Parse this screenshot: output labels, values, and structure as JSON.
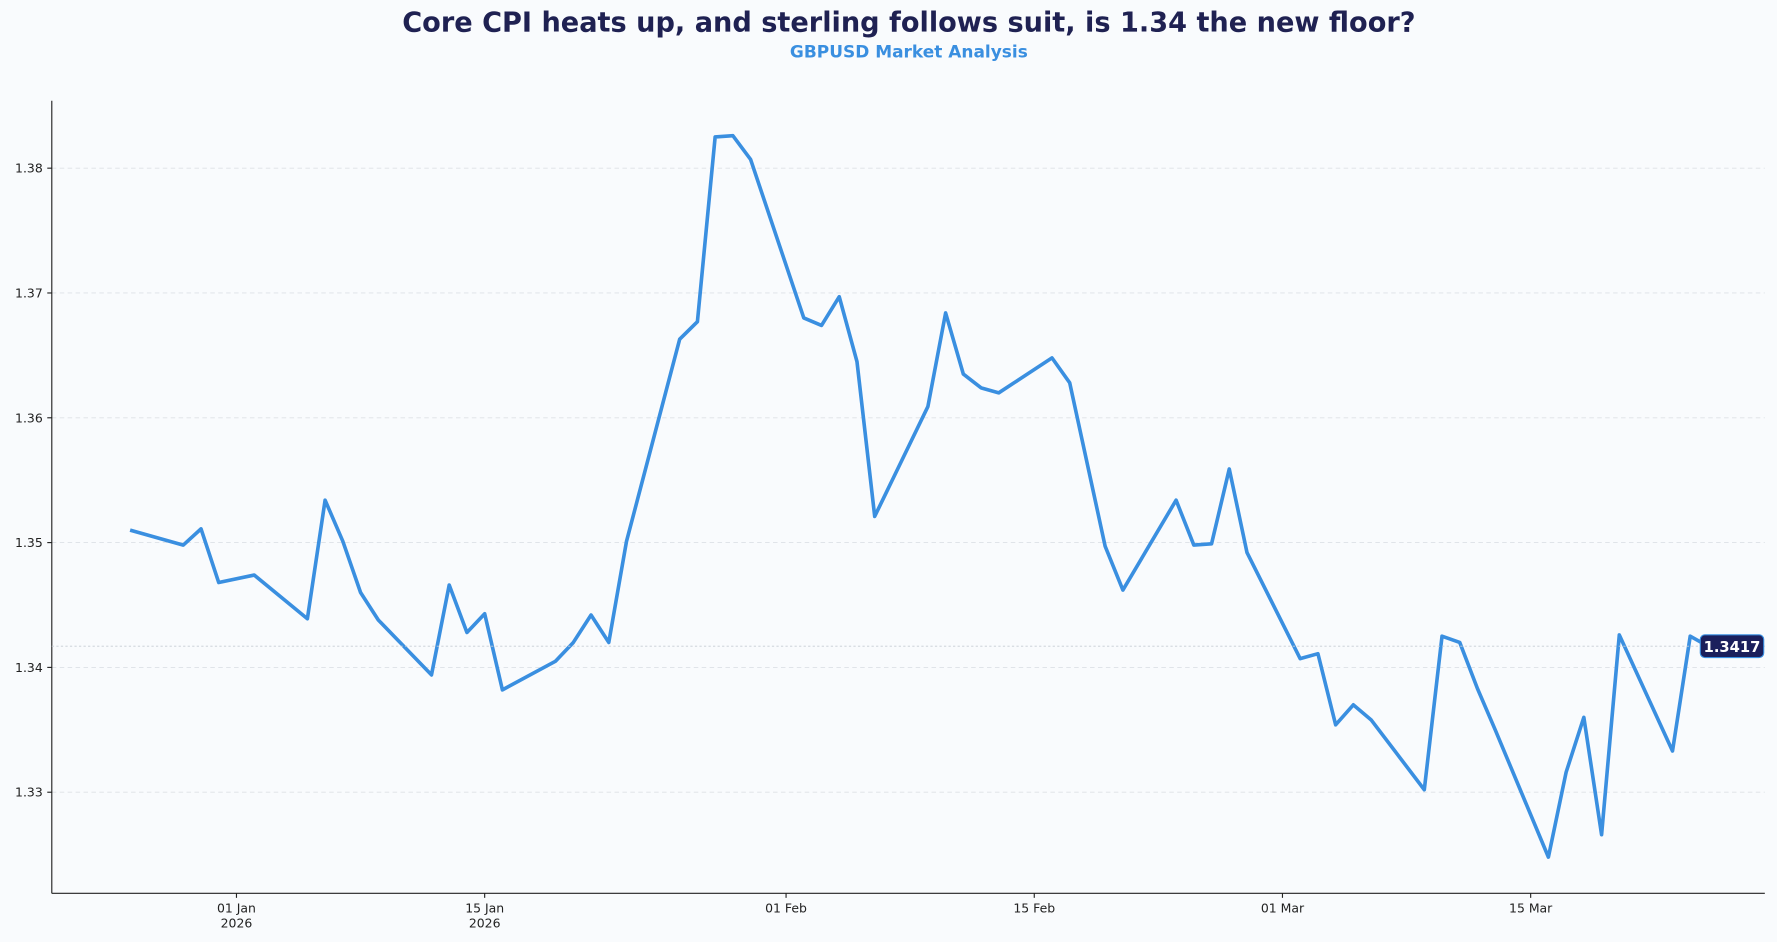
{
  "chart_data": {
    "type": "line",
    "title": "Core CPI heats up, and sterling follows suit, is 1.34 the new floor?",
    "subtitle": "GBPUSD Market Analysis",
    "x": [
      "2025-12-26",
      "2025-12-29",
      "2025-12-30",
      "2025-12-31",
      "2026-01-02",
      "2026-01-05",
      "2026-01-06",
      "2026-01-07",
      "2026-01-08",
      "2026-01-09",
      "2026-01-12",
      "2026-01-13",
      "2026-01-14",
      "2026-01-15",
      "2026-01-16",
      "2026-01-19",
      "2026-01-20",
      "2026-01-21",
      "2026-01-22",
      "2026-01-23",
      "2026-01-26",
      "2026-01-27",
      "2026-01-28",
      "2026-01-29",
      "2026-01-30",
      "2026-02-02",
      "2026-02-03",
      "2026-02-04",
      "2026-02-05",
      "2026-02-06",
      "2026-02-09",
      "2026-02-10",
      "2026-02-11",
      "2026-02-12",
      "2026-02-13",
      "2026-02-16",
      "2026-02-17",
      "2026-02-19",
      "2026-02-20",
      "2026-02-23",
      "2026-02-24",
      "2026-02-25",
      "2026-02-26",
      "2026-02-27",
      "2026-03-02",
      "2026-03-03",
      "2026-03-04",
      "2026-03-05",
      "2026-03-06",
      "2026-03-09",
      "2026-03-10",
      "2026-03-11",
      "2026-03-12",
      "2026-03-13",
      "2026-03-16",
      "2026-03-17",
      "2026-03-18",
      "2026-03-19",
      "2026-03-20",
      "2026-03-23",
      "2026-03-24",
      "2026-03-25"
    ],
    "series": [
      {
        "name": "GBPUSD",
        "color": "#3a8fe0",
        "values": [
          1.351,
          1.3498,
          1.3511,
          1.3468,
          1.3474,
          1.3439,
          1.3534,
          1.3501,
          1.346,
          1.3438,
          1.3394,
          1.3466,
          1.3428,
          1.3443,
          1.3382,
          1.3405,
          1.342,
          1.3442,
          1.342,
          1.3501,
          1.3663,
          1.3677,
          1.3825,
          1.3826,
          1.3807,
          1.368,
          1.3674,
          1.3697,
          1.3645,
          1.3521,
          1.3609,
          1.3684,
          1.3635,
          1.3624,
          1.362,
          1.3648,
          1.3628,
          1.3497,
          1.3462,
          1.3534,
          1.3498,
          1.3499,
          1.3559,
          1.3492,
          1.3407,
          1.3411,
          1.3354,
          1.337,
          1.3358,
          1.3302,
          1.3425,
          1.342,
          1.3383,
          1.335,
          1.3248,
          1.3316,
          1.336,
          1.3266,
          1.3426,
          1.3333,
          1.3425,
          1.3417
        ]
      }
    ],
    "xlim": [
      "2025-12-21T14:00:00Z",
      "2026-03-28T05:00:00Z"
    ],
    "xticks": [
      {
        "value": "2026-01-01",
        "label": [
          "01 Jan",
          "2026"
        ]
      },
      {
        "value": "2026-01-15",
        "label": [
          "15 Jan",
          "2026"
        ]
      },
      {
        "value": "2026-02-01",
        "label": [
          "01 Feb"
        ]
      },
      {
        "value": "2026-02-15",
        "label": [
          "15 Feb"
        ]
      },
      {
        "value": "2026-03-01",
        "label": [
          "01 Mar"
        ]
      },
      {
        "value": "2026-03-15",
        "label": [
          "15 Mar"
        ]
      }
    ],
    "ylim": [
      1.3219,
      1.3854
    ],
    "yticks": [
      1.33,
      1.34,
      1.35,
      1.36,
      1.37,
      1.38
    ],
    "grid": true,
    "last_value_badge_color": "#1b1f5c",
    "title_color": "#1f2152"
  }
}
